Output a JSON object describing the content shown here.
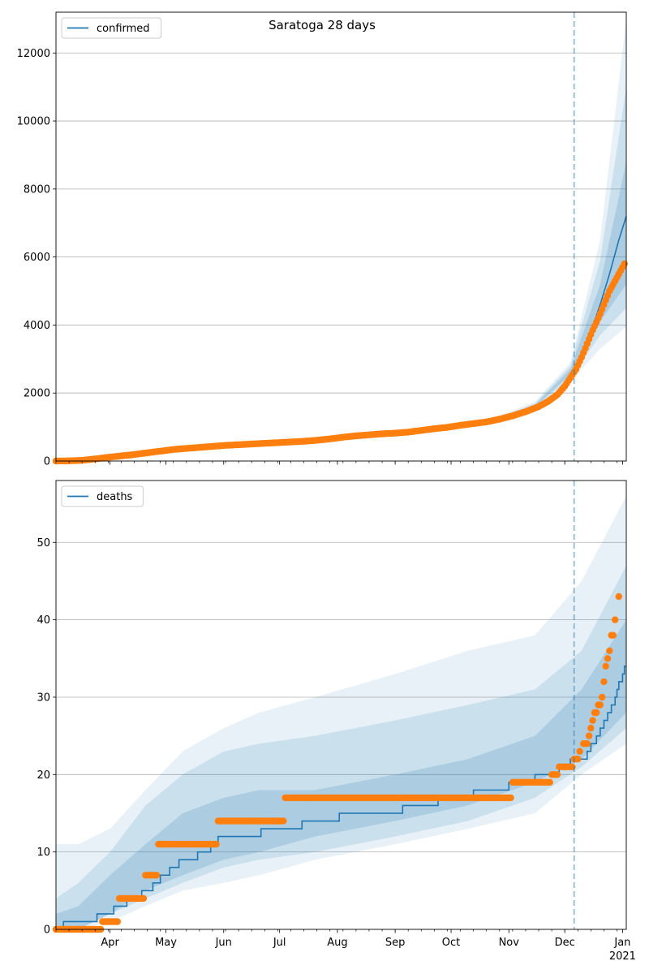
{
  "figure": {
    "title": "Saratoga 28 days"
  },
  "colors": {
    "model": "#1f77b4",
    "observed": "#ff7f0e",
    "grid": "#b0b0b0",
    "vline": "#1f77b4"
  },
  "x_axis": {
    "start": "2020-03-03",
    "end": "2021-01-03",
    "month_ticks": [
      {
        "date": "2020-04-01",
        "label": "Apr"
      },
      {
        "date": "2020-05-01",
        "label": "May"
      },
      {
        "date": "2020-06-01",
        "label": "Jun"
      },
      {
        "date": "2020-07-01",
        "label": "Jul"
      },
      {
        "date": "2020-08-01",
        "label": "Aug"
      },
      {
        "date": "2020-09-01",
        "label": "Sep"
      },
      {
        "date": "2020-10-01",
        "label": "Oct"
      },
      {
        "date": "2020-11-01",
        "label": "Nov"
      },
      {
        "date": "2020-12-01",
        "label": "Dec"
      },
      {
        "date": "2021-01-01",
        "label": "Jan"
      }
    ],
    "year_label": "2021",
    "forecast_start": "2020-12-06"
  },
  "chart_data": [
    {
      "type": "line",
      "title": "Saratoga 28 days",
      "legend": "confirmed",
      "legend_position": "top-left",
      "grid": "horizontal",
      "ylim": [
        0,
        13200
      ],
      "yticks": [
        0,
        2000,
        4000,
        6000,
        8000,
        10000,
        12000
      ],
      "series": [
        {
          "name": "confirmed",
          "kind": "model-line",
          "points": [
            [
              "2020-03-03",
              0
            ],
            [
              "2020-03-15",
              20
            ],
            [
              "2020-03-25",
              80
            ],
            [
              "2020-04-05",
              150
            ],
            [
              "2020-04-15",
              210
            ],
            [
              "2020-04-25",
              290
            ],
            [
              "2020-05-05",
              350
            ],
            [
              "2020-05-20",
              420
            ],
            [
              "2020-06-05",
              480
            ],
            [
              "2020-06-20",
              520
            ],
            [
              "2020-07-05",
              560
            ],
            [
              "2020-07-20",
              600
            ],
            [
              "2020-08-05",
              680
            ],
            [
              "2020-08-20",
              760
            ],
            [
              "2020-09-05",
              830
            ],
            [
              "2020-09-20",
              920
            ],
            [
              "2020-10-05",
              1030
            ],
            [
              "2020-10-20",
              1170
            ],
            [
              "2020-11-01",
              1330
            ],
            [
              "2020-11-10",
              1480
            ],
            [
              "2020-11-20",
              1700
            ],
            [
              "2020-11-28",
              2000
            ],
            [
              "2020-12-03",
              2350
            ],
            [
              "2020-12-06",
              2650
            ],
            [
              "2020-12-10",
              3100
            ],
            [
              "2020-12-15",
              3800
            ],
            [
              "2020-12-20",
              4600
            ],
            [
              "2020-12-25",
              5500
            ],
            [
              "2020-12-30",
              6500
            ],
            [
              "2021-01-03",
              7200
            ]
          ]
        },
        {
          "name": "observed",
          "kind": "observed-points",
          "points": [
            [
              "2020-03-03",
              0
            ],
            [
              "2020-03-10",
              5
            ],
            [
              "2020-03-17",
              20
            ],
            [
              "2020-03-24",
              60
            ],
            [
              "2020-03-31",
              110
            ],
            [
              "2020-04-07",
              150
            ],
            [
              "2020-04-14",
              190
            ],
            [
              "2020-04-21",
              240
            ],
            [
              "2020-04-28",
              290
            ],
            [
              "2020-05-05",
              340
            ],
            [
              "2020-05-12",
              370
            ],
            [
              "2020-05-19",
              400
            ],
            [
              "2020-05-26",
              430
            ],
            [
              "2020-06-02",
              460
            ],
            [
              "2020-06-09",
              480
            ],
            [
              "2020-06-16",
              500
            ],
            [
              "2020-06-23",
              520
            ],
            [
              "2020-06-30",
              540
            ],
            [
              "2020-07-07",
              560
            ],
            [
              "2020-07-14",
              580
            ],
            [
              "2020-07-21",
              610
            ],
            [
              "2020-07-28",
              650
            ],
            [
              "2020-08-04",
              700
            ],
            [
              "2020-08-11",
              740
            ],
            [
              "2020-08-18",
              770
            ],
            [
              "2020-08-25",
              800
            ],
            [
              "2020-09-01",
              820
            ],
            [
              "2020-09-08",
              850
            ],
            [
              "2020-09-15",
              900
            ],
            [
              "2020-09-22",
              950
            ],
            [
              "2020-09-29",
              990
            ],
            [
              "2020-10-06",
              1050
            ],
            [
              "2020-10-13",
              1100
            ],
            [
              "2020-10-20",
              1150
            ],
            [
              "2020-10-27",
              1230
            ],
            [
              "2020-11-03",
              1330
            ],
            [
              "2020-11-10",
              1450
            ],
            [
              "2020-11-17",
              1600
            ],
            [
              "2020-11-22",
              1750
            ],
            [
              "2020-11-27",
              1950
            ],
            [
              "2020-12-01",
              2200
            ],
            [
              "2020-12-04",
              2450
            ],
            [
              "2020-12-07",
              2700
            ],
            [
              "2020-12-10",
              3050
            ],
            [
              "2020-12-13",
              3450
            ],
            [
              "2020-12-16",
              3850
            ],
            [
              "2020-12-19",
              4200
            ],
            [
              "2020-12-22",
              4600
            ],
            [
              "2020-12-25",
              5000
            ],
            [
              "2020-12-28",
              5300
            ],
            [
              "2020-12-31",
              5600
            ],
            [
              "2021-01-02",
              5800
            ]
          ]
        }
      ],
      "bands": [
        {
          "level": "outer",
          "lower": [
            0,
            400,
            480,
            560,
            700,
            880,
            1120,
            1500,
            2350,
            3300,
            3950
          ],
          "upper": [
            0,
            520,
            580,
            660,
            810,
            1000,
            1300,
            1750,
            2900,
            6500,
            13000
          ]
        },
        {
          "level": "middle",
          "lower": [
            0,
            410,
            500,
            580,
            720,
            900,
            1150,
            1550,
            2450,
            3700,
            4500
          ],
          "upper": [
            0,
            500,
            560,
            640,
            790,
            970,
            1250,
            1690,
            2800,
            5900,
            11000
          ]
        },
        {
          "level": "inner",
          "lower": [
            0,
            420,
            510,
            590,
            730,
            910,
            1170,
            1590,
            2550,
            4100,
            5200
          ],
          "upper": [
            0,
            490,
            550,
            630,
            780,
            960,
            1220,
            1650,
            2700,
            5200,
            8800
          ]
        }
      ],
      "band_dates": [
        "2020-03-03",
        "2020-05-25",
        "2020-06-25",
        "2020-07-25",
        "2020-08-25",
        "2020-09-25",
        "2020-10-25",
        "2020-11-15",
        "2020-12-04",
        "2020-12-20",
        "2021-01-03"
      ]
    },
    {
      "type": "line",
      "legend": "deaths",
      "legend_position": "top-left",
      "grid": "horizontal",
      "ylim": [
        0,
        58
      ],
      "yticks": [
        0,
        10,
        20,
        30,
        40,
        50
      ],
      "series": [
        {
          "name": "deaths",
          "kind": "model-steps",
          "steps": [
            [
              "2020-03-03",
              0
            ],
            [
              "2020-03-07",
              1
            ],
            [
              "2020-03-25",
              2
            ],
            [
              "2020-04-03",
              3
            ],
            [
              "2020-04-10",
              4
            ],
            [
              "2020-04-18",
              5
            ],
            [
              "2020-04-24",
              6
            ],
            [
              "2020-04-28",
              7
            ],
            [
              "2020-05-03",
              8
            ],
            [
              "2020-05-08",
              9
            ],
            [
              "2020-05-18",
              10
            ],
            [
              "2020-05-25",
              11
            ],
            [
              "2020-05-29",
              12
            ],
            [
              "2020-06-21",
              13
            ],
            [
              "2020-07-13",
              14
            ],
            [
              "2020-08-02",
              15
            ],
            [
              "2020-09-05",
              16
            ],
            [
              "2020-09-24",
              17
            ],
            [
              "2020-10-13",
              18
            ],
            [
              "2020-11-01",
              19
            ],
            [
              "2020-11-15",
              20
            ],
            [
              "2020-11-28",
              21
            ],
            [
              "2020-12-04",
              22
            ],
            [
              "2020-12-10",
              22
            ],
            [
              "2020-12-13",
              23
            ],
            [
              "2020-12-15",
              24
            ],
            [
              "2020-12-18",
              25
            ],
            [
              "2020-12-20",
              26
            ],
            [
              "2020-12-22",
              27
            ],
            [
              "2020-12-24",
              28
            ],
            [
              "2020-12-26",
              29
            ],
            [
              "2020-12-28",
              30
            ],
            [
              "2020-12-29",
              31
            ],
            [
              "2020-12-30",
              32
            ],
            [
              "2021-01-01",
              33
            ],
            [
              "2021-01-02",
              34
            ]
          ]
        },
        {
          "name": "observed",
          "kind": "observed-points",
          "runs": [
            [
              "2020-03-03",
              "2020-03-28",
              0
            ],
            [
              "2020-03-28",
              "2020-04-06",
              1
            ],
            [
              "2020-04-06",
              "2020-04-20",
              4
            ],
            [
              "2020-04-20",
              "2020-04-27",
              7
            ],
            [
              "2020-04-27",
              "2020-05-29",
              11
            ],
            [
              "2020-05-29",
              "2020-07-04",
              14
            ],
            [
              "2020-07-04",
              "2020-11-03",
              17
            ],
            [
              "2020-11-03",
              "2020-11-24",
              19
            ],
            [
              "2020-11-24",
              "2020-11-28",
              20
            ],
            [
              "2020-11-28",
              "2020-12-06",
              21
            ],
            [
              "2020-12-06",
              "2020-12-09",
              22
            ],
            [
              "2020-12-09",
              "2020-12-10",
              23
            ]
          ],
          "points": [
            [
              "2020-12-11",
              24
            ],
            [
              "2020-12-12",
              24
            ],
            [
              "2020-12-13",
              24
            ],
            [
              "2020-12-14",
              25
            ],
            [
              "2020-12-15",
              26
            ],
            [
              "2020-12-16",
              27
            ],
            [
              "2020-12-17",
              28
            ],
            [
              "2020-12-18",
              28
            ],
            [
              "2020-12-19",
              29
            ],
            [
              "2020-12-20",
              29
            ],
            [
              "2020-12-21",
              30
            ],
            [
              "2020-12-22",
              32
            ],
            [
              "2020-12-23",
              34
            ],
            [
              "2020-12-24",
              35
            ],
            [
              "2020-12-25",
              36
            ],
            [
              "2020-12-26",
              38
            ],
            [
              "2020-12-27",
              38
            ],
            [
              "2020-12-28",
              40
            ],
            [
              "2020-12-30",
              43
            ]
          ]
        }
      ],
      "bands": [
        {
          "level": "outer",
          "lower": [
            0,
            0,
            1,
            3,
            5,
            6,
            7,
            9,
            11,
            13,
            15,
            20,
            24
          ],
          "upper": [
            11,
            11,
            13,
            18,
            23,
            26,
            28,
            30,
            33,
            36,
            38,
            45,
            56
          ]
        },
        {
          "level": "middle",
          "lower": [
            0,
            0,
            2,
            4,
            6,
            8,
            9,
            10,
            12,
            14,
            17,
            21,
            26
          ],
          "upper": [
            4,
            6,
            10,
            16,
            20,
            23,
            24,
            25,
            27,
            29,
            31,
            36,
            47
          ]
        },
        {
          "level": "inner",
          "lower": [
            0,
            0,
            2,
            5,
            7,
            9,
            10,
            12,
            14,
            16,
            19,
            22,
            28
          ],
          "upper": [
            2,
            3,
            7,
            11,
            15,
            17,
            18,
            18,
            20,
            22,
            25,
            31,
            40
          ]
        }
      ],
      "band_dates": [
        "2020-03-03",
        "2020-03-15",
        "2020-04-01",
        "2020-04-20",
        "2020-05-10",
        "2020-06-01",
        "2020-06-20",
        "2020-07-20",
        "2020-09-01",
        "2020-10-10",
        "2020-11-15",
        "2020-12-10",
        "2021-01-03"
      ]
    }
  ]
}
